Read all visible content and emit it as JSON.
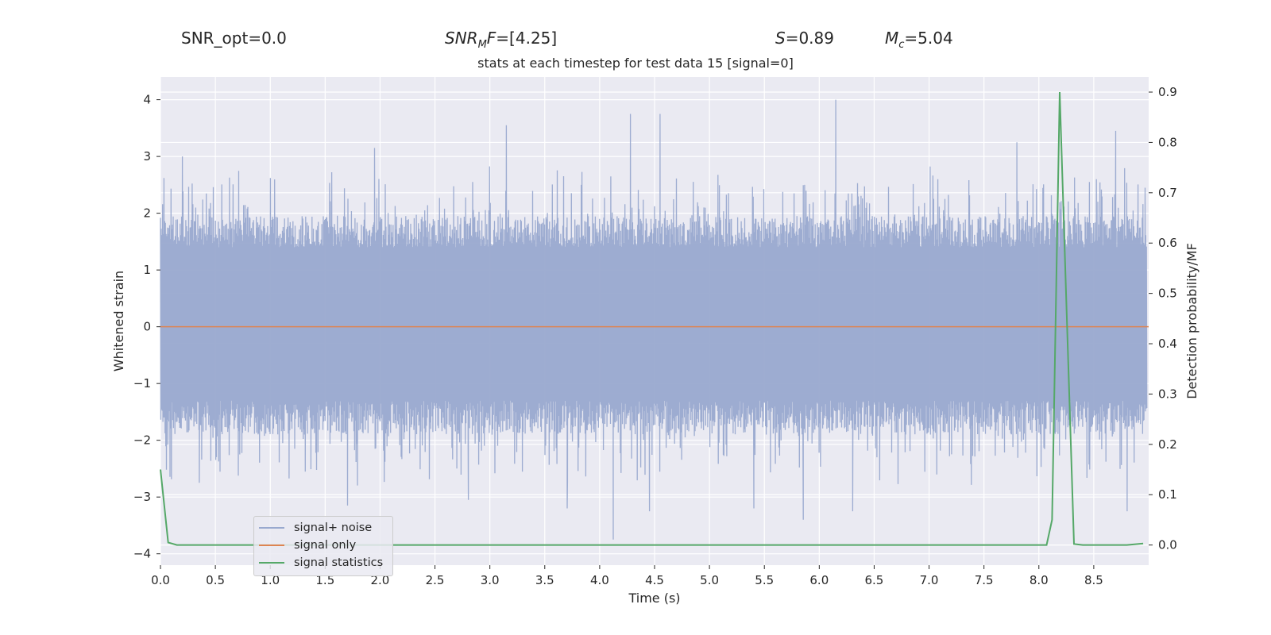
{
  "header": {
    "snr_opt": "SNR_opt=0.0",
    "snr_mf_main": "SNR",
    "snr_mf_sub": "M",
    "snr_mf_tail": "F",
    "snr_mf_value": "=[4.25]",
    "s_symbol": "S",
    "s_value": "=0.89",
    "mc_symbol": "M",
    "mc_sub": "c",
    "mc_value": "=5.04"
  },
  "chart_data": {
    "type": "line",
    "title": "stats at each timestep for test data 15 [signal=0]",
    "xlabel": "Time (s)",
    "ylabel": "Whitened strain",
    "ylabel_right": "Detection probability/MF",
    "xlim": [
      0,
      9.0
    ],
    "ylim": [
      -4.2,
      4.4
    ],
    "ylim_right": [
      -0.04,
      0.93
    ],
    "x_ticks": [
      "0.0",
      "0.5",
      "1.0",
      "1.5",
      "2.0",
      "2.5",
      "3.0",
      "3.5",
      "4.0",
      "4.5",
      "5.0",
      "5.5",
      "6.0",
      "6.5",
      "7.0",
      "7.5",
      "8.0",
      "8.5"
    ],
    "y_ticks": [
      "4",
      "3",
      "2",
      "1",
      "0",
      "−1",
      "−2",
      "−3",
      "−4"
    ],
    "y_ticks_right": [
      "0.9",
      "0.8",
      "0.7",
      "0.6",
      "0.5",
      "0.4",
      "0.3",
      "0.2",
      "0.1",
      "0.0"
    ],
    "grid": true,
    "legend_position": "lower-left",
    "colors": {
      "noise": "#99a9cf",
      "signal": "#dd8452",
      "stat": "#55a868",
      "bg": "#eaeaf2",
      "grid": "#ffffff"
    },
    "series": [
      {
        "name": "signal+ noise",
        "axis": "left",
        "note_type": "noise envelope",
        "sample_count": 1400,
        "upper_peaks": [
          [
            0.2,
            3.0
          ],
          [
            1.95,
            3.15
          ],
          [
            3.15,
            3.55
          ],
          [
            4.28,
            3.75
          ],
          [
            4.55,
            3.75
          ],
          [
            6.15,
            4.0
          ],
          [
            7.8,
            3.25
          ],
          [
            8.7,
            3.45
          ]
        ],
        "lower_peaks": [
          [
            0.35,
            -2.75
          ],
          [
            1.7,
            -3.15
          ],
          [
            2.8,
            -3.05
          ],
          [
            3.7,
            -3.2
          ],
          [
            4.12,
            -3.75
          ],
          [
            4.45,
            -3.25
          ],
          [
            5.4,
            -3.2
          ],
          [
            5.85,
            -3.4
          ],
          [
            6.3,
            -3.25
          ],
          [
            8.8,
            -3.25
          ]
        ]
      },
      {
        "name": "signal only",
        "axis": "left",
        "x": [
          0,
          9.0
        ],
        "y": [
          0,
          0
        ]
      },
      {
        "name": "signal statistics",
        "axis": "right",
        "x": [
          0.0,
          0.07,
          0.15,
          1.0,
          3.0,
          5.0,
          7.0,
          8.07,
          8.12,
          8.19,
          8.32,
          8.4,
          8.5,
          8.8,
          8.95
        ],
        "y": [
          0.15,
          0.005,
          0.0,
          0.0,
          0.0,
          0.0,
          0.0,
          0.0,
          0.05,
          0.9,
          0.002,
          0.0,
          0.0,
          0.0,
          0.003
        ]
      }
    ]
  }
}
